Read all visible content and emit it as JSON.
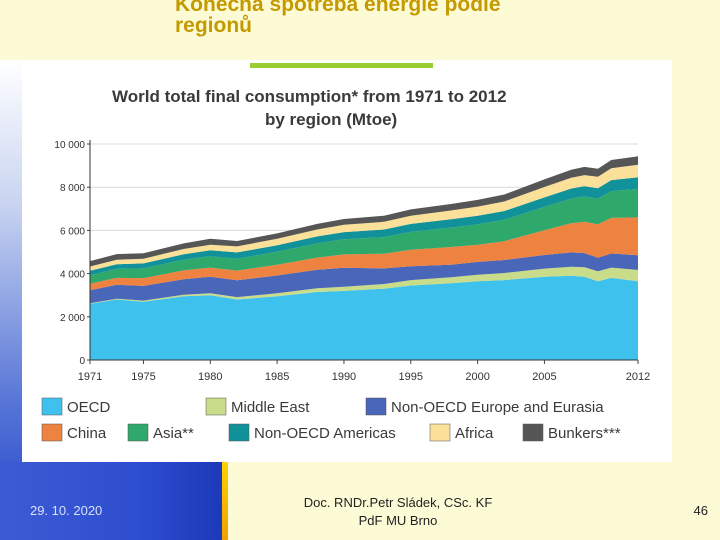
{
  "slide": {
    "title_line1": "Konečná spotřeba energie podle",
    "title_line2": "regionů",
    "date": "29. 10. 2020",
    "author_line1": "Doc. RNDr.Petr Sládek, CSc. KF",
    "author_line2": "PdF MU Brno",
    "page_number": "46"
  },
  "chart_data": {
    "type": "area",
    "stacked": true,
    "title_line1": "World total final consumption* from 1971 to 2012",
    "title_line2": "by region (Mtoe)",
    "xlabel": "",
    "ylabel": "",
    "xlim": [
      1971,
      2012
    ],
    "ylim": [
      0,
      10000
    ],
    "y_ticks": [
      0,
      2000,
      4000,
      6000,
      8000,
      10000
    ],
    "y_tick_labels": [
      "0",
      "2 000",
      "4 000",
      "6 000",
      "8 000",
      "10 000"
    ],
    "x_ticks": [
      1971,
      1975,
      1980,
      1985,
      1990,
      1995,
      2000,
      2005,
      2012
    ],
    "x_tick_labels": [
      "1971",
      "1975",
      "1980",
      "1985",
      "1990",
      "1995",
      "2000",
      "2005",
      "2012"
    ],
    "grid": "horizontal",
    "x": [
      1971,
      1973,
      1975,
      1978,
      1980,
      1982,
      1985,
      1988,
      1990,
      1993,
      1995,
      1998,
      2000,
      2002,
      2005,
      2007,
      2008,
      2009,
      2010,
      2012
    ],
    "series": [
      {
        "name": "OECD",
        "color": "#3fc1ee",
        "values": [
          2600,
          2800,
          2700,
          2950,
          3000,
          2800,
          2950,
          3150,
          3200,
          3300,
          3450,
          3550,
          3650,
          3700,
          3850,
          3900,
          3850,
          3650,
          3800,
          3650
        ]
      },
      {
        "name": "Middle East",
        "color": "#c9dc8a",
        "values": [
          30,
          40,
          50,
          70,
          90,
          110,
          140,
          170,
          190,
          220,
          250,
          280,
          300,
          330,
          380,
          420,
          440,
          460,
          480,
          520
        ]
      },
      {
        "name": "Non-OECD Europe and Eurasia",
        "color": "#4a66b8",
        "values": [
          600,
          640,
          680,
          720,
          760,
          780,
          820,
          860,
          880,
          720,
          640,
          580,
          590,
          600,
          630,
          660,
          660,
          620,
          650,
          680
        ]
      },
      {
        "name": "China",
        "color": "#ee8240",
        "values": [
          300,
          320,
          360,
          410,
          430,
          450,
          500,
          560,
          620,
          680,
          760,
          820,
          800,
          870,
          1150,
          1350,
          1450,
          1550,
          1650,
          1750
        ]
      },
      {
        "name": "Asia**",
        "color": "#2fa86c",
        "values": [
          400,
          420,
          450,
          490,
          520,
          550,
          600,
          660,
          700,
          770,
          830,
          900,
          940,
          990,
          1080,
          1140,
          1170,
          1190,
          1240,
          1320
        ]
      },
      {
        "name": "Non-OECD Americas",
        "color": "#11929a",
        "values": [
          200,
          215,
          230,
          260,
          280,
          290,
          300,
          320,
          330,
          350,
          370,
          390,
          400,
          410,
          440,
          470,
          480,
          485,
          510,
          540
        ]
      },
      {
        "name": "Africa",
        "color": "#fbe09a",
        "values": [
          200,
          210,
          220,
          240,
          260,
          280,
          300,
          320,
          340,
          360,
          380,
          400,
          420,
          440,
          480,
          500,
          510,
          530,
          550,
          580
        ]
      },
      {
        "name": "Bunkers***",
        "color": "#565656",
        "values": [
          250,
          260,
          250,
          260,
          270,
          250,
          250,
          260,
          270,
          280,
          290,
          300,
          310,
          320,
          350,
          370,
          380,
          370,
          380,
          390
        ]
      }
    ],
    "legend": {
      "position": "bottom",
      "rows": [
        [
          "OECD",
          "Middle East",
          "Non-OECD Europe and Eurasia"
        ],
        [
          "China",
          "Asia**",
          "Non-OECD Americas",
          "Africa",
          "Bunkers***"
        ]
      ]
    }
  }
}
